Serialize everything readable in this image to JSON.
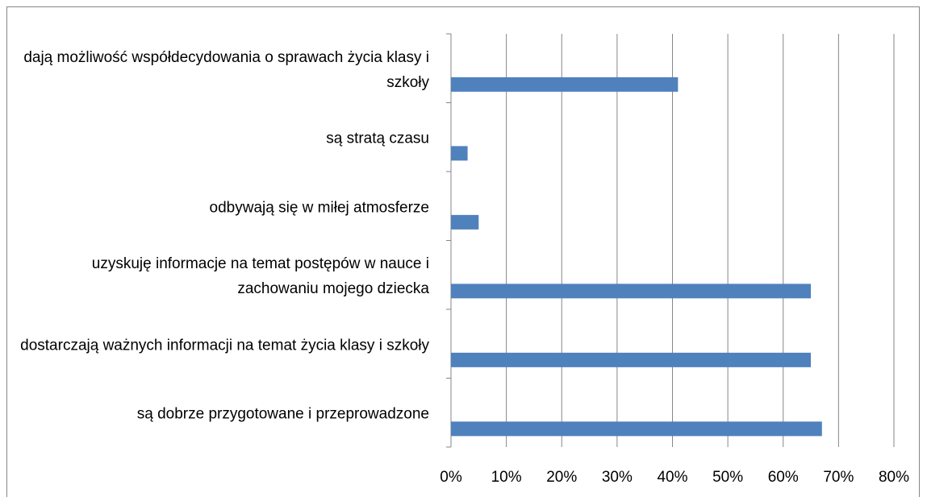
{
  "chart_data": {
    "type": "barh",
    "categories": [
      "dają możliwość współdecydowania o sprawach życia klasy i szkoły",
      "są stratą czasu",
      "odbywają się w miłej atmosferze",
      "uzyskuję informacje na temat postępów w nauce i zachowaniu mojego dziecka",
      "dostarczają ważnych informacji na temat życia klasy i szkoły",
      "są dobrze przygotowane i przeprowadzone"
    ],
    "values": [
      41,
      3,
      5,
      65,
      65,
      67
    ],
    "color": "#4f81bd",
    "xlim": [
      0,
      80
    ],
    "xticks": [
      {
        "value": 0,
        "label": "0%"
      },
      {
        "value": 10,
        "label": "10%"
      },
      {
        "value": 20,
        "label": "20%"
      },
      {
        "value": 30,
        "label": "30%"
      },
      {
        "value": 40,
        "label": "40%"
      },
      {
        "value": 50,
        "label": "50%"
      },
      {
        "value": 60,
        "label": "60%"
      },
      {
        "value": 70,
        "label": "70%"
      },
      {
        "value": 80,
        "label": "80%"
      }
    ],
    "grid": true
  }
}
